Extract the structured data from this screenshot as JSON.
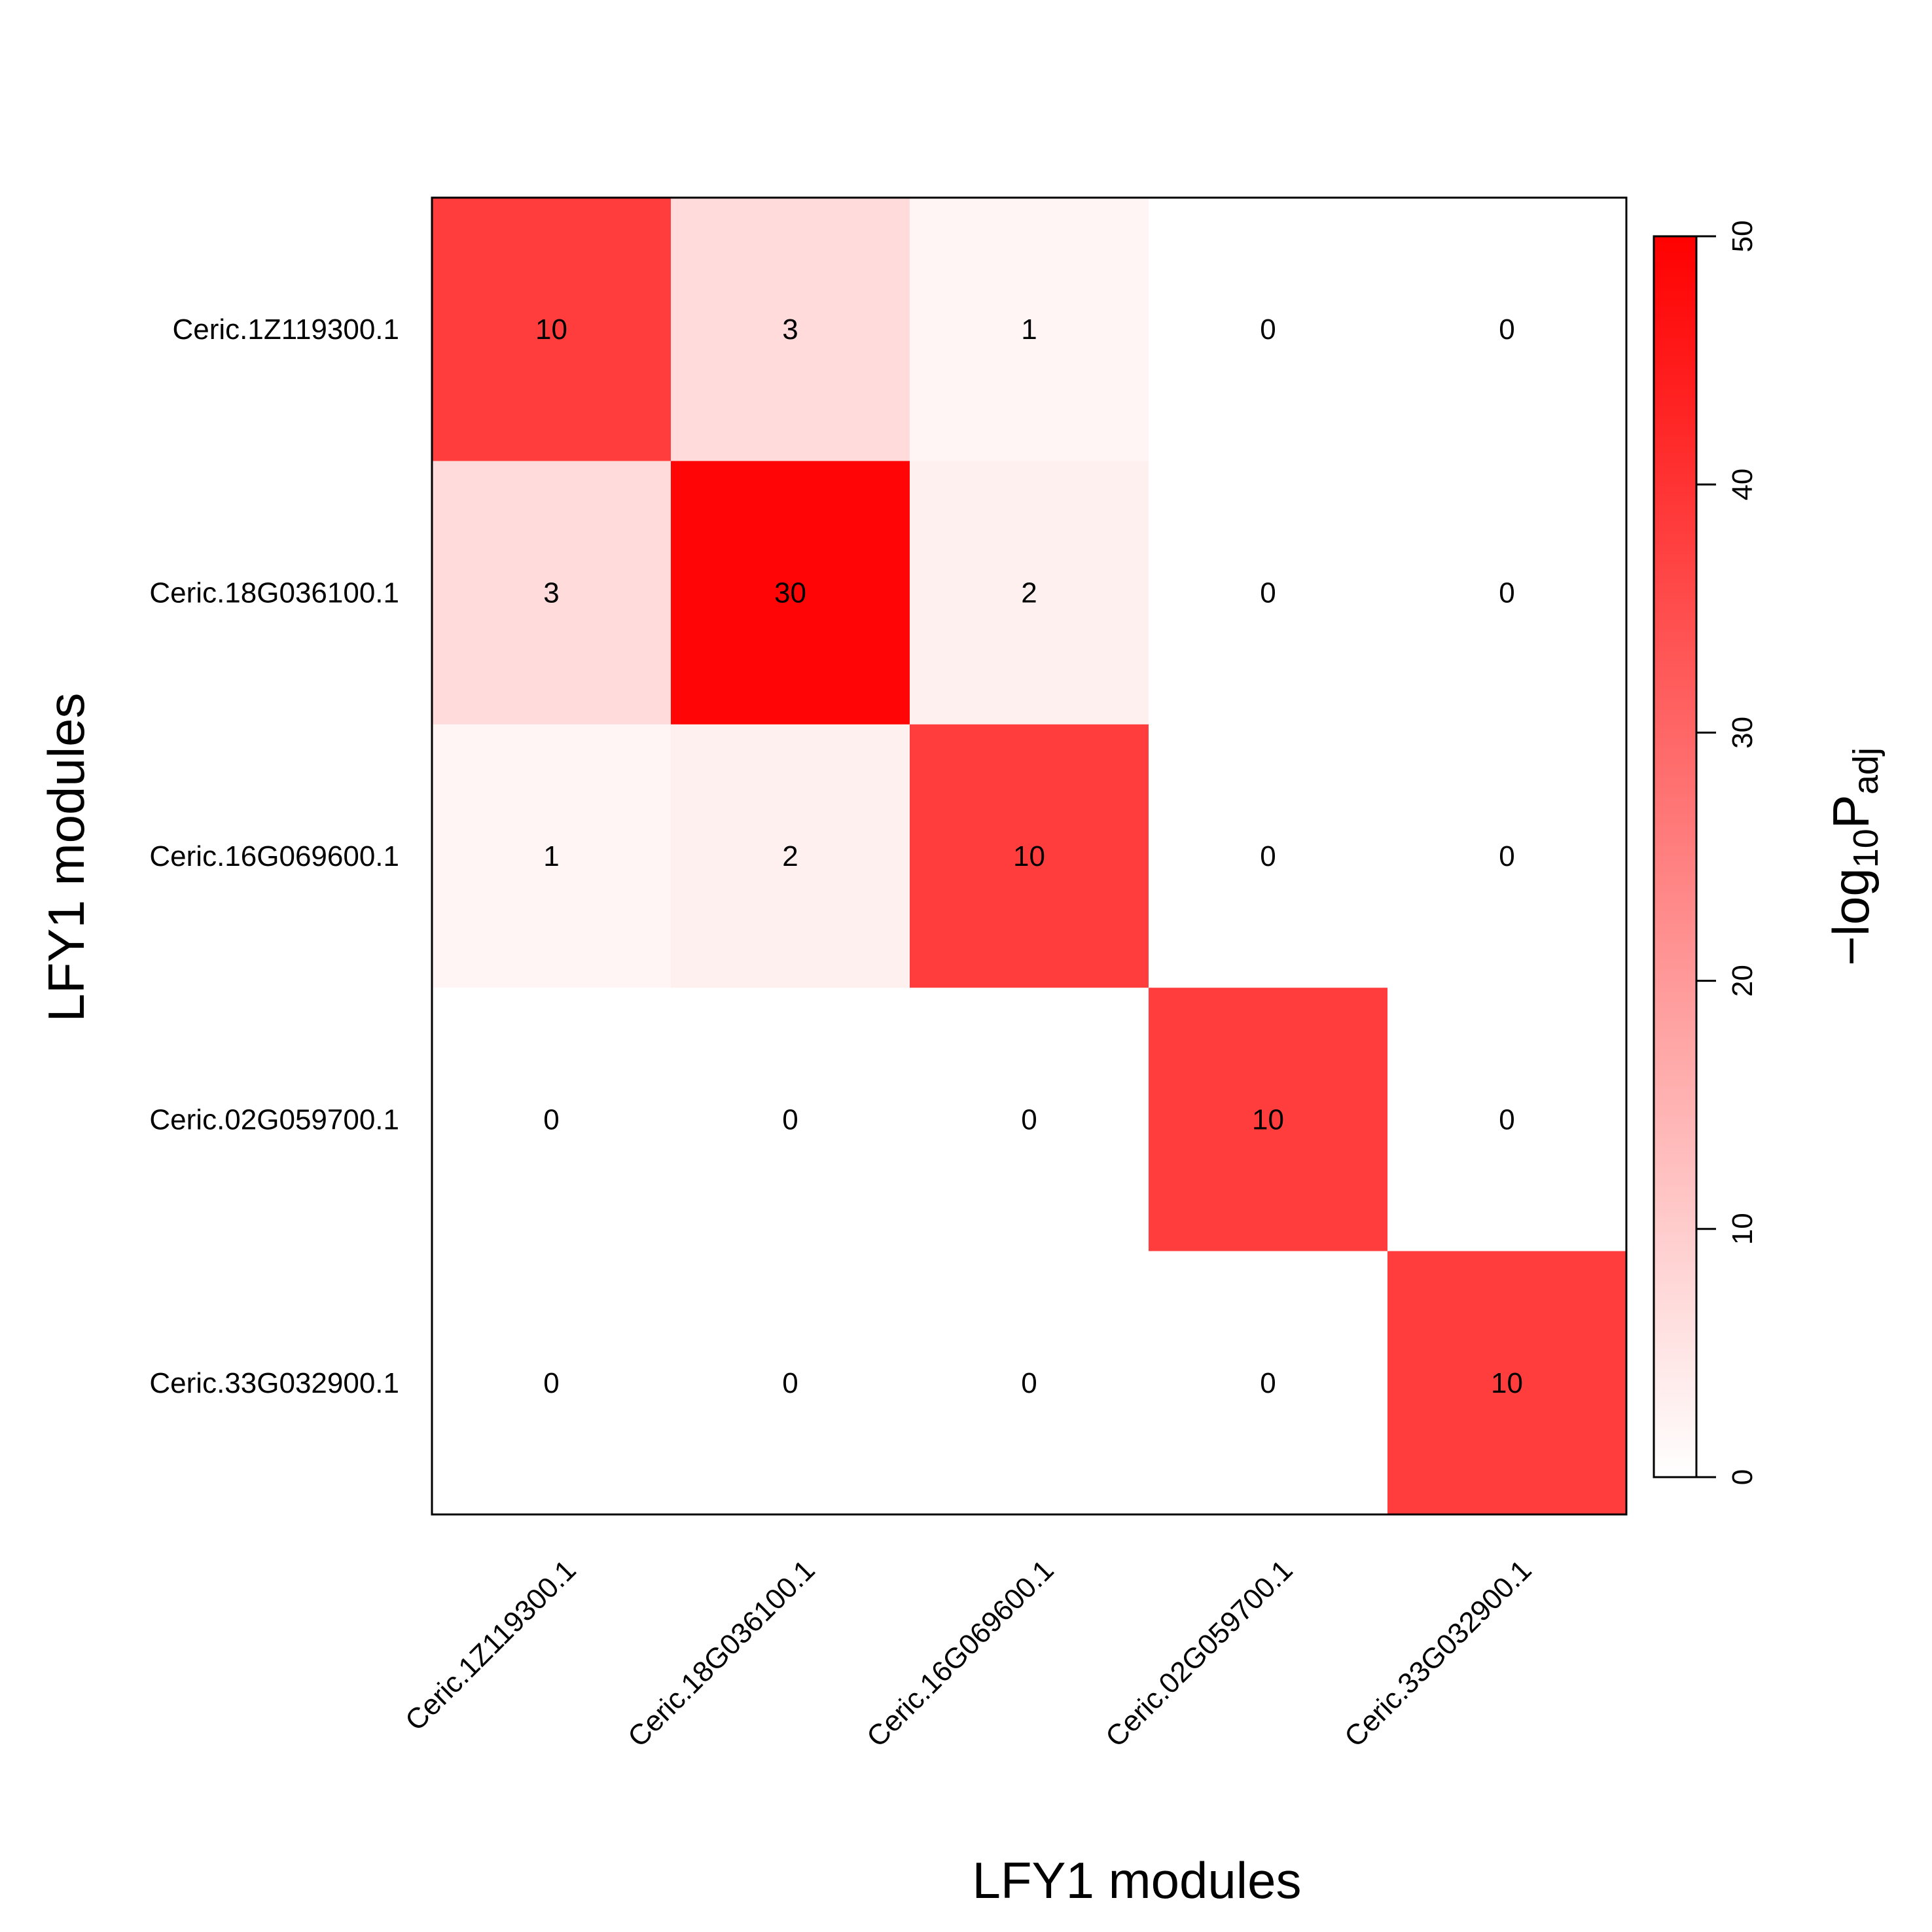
{
  "chart_data": {
    "type": "heatmap",
    "xlabel": "LFY1 modules",
    "ylabel": "LFY1 modules",
    "x_categories": [
      "Ceric.1Z119300.1",
      "Ceric.18G036100.1",
      "Ceric.16G069600.1",
      "Ceric.02G059700.1",
      "Ceric.33G032900.1"
    ],
    "y_categories": [
      "Ceric.1Z119300.1",
      "Ceric.18G036100.1",
      "Ceric.16G069600.1",
      "Ceric.02G059700.1",
      "Ceric.33G032900.1"
    ],
    "cell_labels": [
      [
        "10",
        "3",
        "1",
        "0",
        "0"
      ],
      [
        "3",
        "30",
        "2",
        "0",
        "0"
      ],
      [
        "1",
        "2",
        "10",
        "0",
        "0"
      ],
      [
        "0",
        "0",
        "0",
        "10",
        "0"
      ],
      [
        "0",
        "0",
        "0",
        "0",
        "10"
      ]
    ],
    "color_values": [
      [
        38,
        7,
        2,
        0,
        0
      ],
      [
        7,
        49,
        3,
        0,
        0
      ],
      [
        2,
        3,
        38,
        0,
        0
      ],
      [
        0,
        0,
        0,
        38,
        0
      ],
      [
        0,
        0,
        0,
        0,
        38
      ]
    ],
    "colorbar": {
      "title_main": "−log",
      "title_sub": "10",
      "title_p": "P",
      "title_sub2": "adj",
      "range": [
        0,
        50
      ],
      "ticks": [
        "0",
        "10",
        "20",
        "30",
        "40",
        "50"
      ],
      "color_low": "#ffffff",
      "color_high": "#ff0000"
    },
    "grid": false
  }
}
